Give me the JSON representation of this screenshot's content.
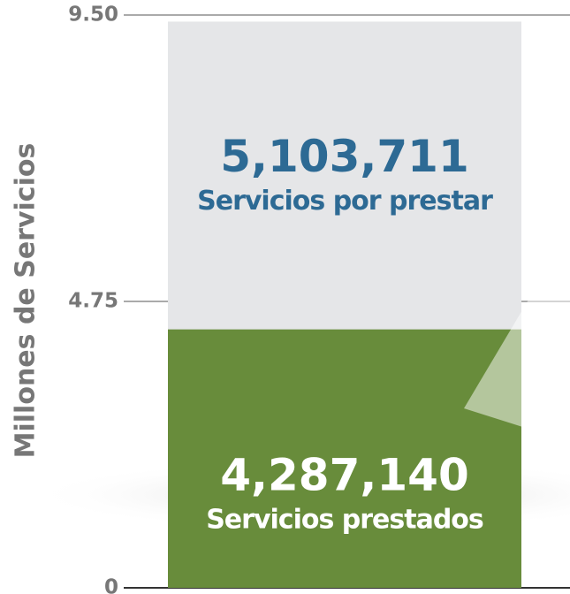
{
  "chart_data": {
    "type": "stacked_bar",
    "y_label": "Millones de Servicios",
    "series": [
      {
        "name": "Servicios prestados",
        "color": "#688c3b",
        "label_color": "#ffffff",
        "values": [
          4.28714
        ],
        "value_labels": [
          "4,287,140"
        ]
      },
      {
        "name": "Servicios por prestar",
        "color": "#e5e6e8",
        "label_color": "#2d6a94",
        "values": [
          5.103711
        ],
        "value_labels": [
          "5,103,711"
        ]
      }
    ],
    "ylim": [
      0,
      9.5
    ],
    "yticks": [
      0,
      4.75,
      {
        "value": 9.5,
        "label": "9.50"
      }
    ],
    "grid": true
  }
}
